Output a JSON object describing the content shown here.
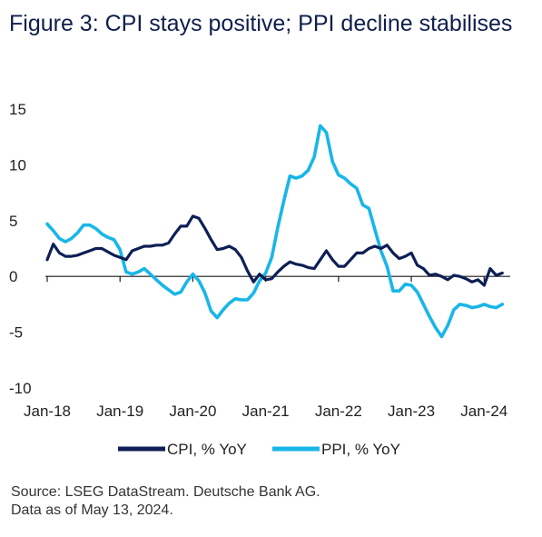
{
  "title": "Figure 3: CPI stays positive; PPI decline stabilises",
  "source_line1": "Source: LSEG DataStream. Deutsche Bank AG.",
  "source_line2": "Data as of May 13, 2024.",
  "colors": {
    "cpi": "#0d1f55",
    "ppi": "#19b6e8"
  },
  "chart_data": {
    "type": "line",
    "title": "Figure 3: CPI stays positive; PPI decline stabilises",
    "xlabel": "",
    "ylabel": "",
    "ylim": [
      -10,
      15
    ],
    "yticks": [
      15,
      10,
      5,
      0,
      -5,
      -10
    ],
    "xlim": [
      "2018-01",
      "2024-05"
    ],
    "xticks": [
      "Jan-18",
      "Jan-19",
      "Jan-20",
      "Jan-21",
      "Jan-22",
      "Jan-23",
      "Jan-24"
    ],
    "grid": false,
    "legend": "bottom",
    "series": [
      {
        "name": "CPI, % YoY",
        "color": "#0d1f55",
        "x": [
          "2018-01",
          "2018-02",
          "2018-03",
          "2018-04",
          "2018-05",
          "2018-06",
          "2018-07",
          "2018-08",
          "2018-09",
          "2018-10",
          "2018-11",
          "2018-12",
          "2019-01",
          "2019-02",
          "2019-03",
          "2019-04",
          "2019-05",
          "2019-06",
          "2019-07",
          "2019-08",
          "2019-09",
          "2019-10",
          "2019-11",
          "2019-12",
          "2020-01",
          "2020-02",
          "2020-03",
          "2020-04",
          "2020-05",
          "2020-06",
          "2020-07",
          "2020-08",
          "2020-09",
          "2020-10",
          "2020-11",
          "2020-12",
          "2021-01",
          "2021-02",
          "2021-03",
          "2021-04",
          "2021-05",
          "2021-06",
          "2021-07",
          "2021-08",
          "2021-09",
          "2021-10",
          "2021-11",
          "2021-12",
          "2022-01",
          "2022-02",
          "2022-03",
          "2022-04",
          "2022-05",
          "2022-06",
          "2022-07",
          "2022-08",
          "2022-09",
          "2022-10",
          "2022-11",
          "2022-12",
          "2023-01",
          "2023-02",
          "2023-03",
          "2023-04",
          "2023-05",
          "2023-06",
          "2023-07",
          "2023-08",
          "2023-09",
          "2023-10",
          "2023-11",
          "2023-12",
          "2024-01",
          "2024-02",
          "2024-03",
          "2024-04"
        ],
        "values": [
          1.5,
          2.9,
          2.1,
          1.8,
          1.8,
          1.9,
          2.1,
          2.3,
          2.5,
          2.5,
          2.2,
          1.9,
          1.7,
          1.5,
          2.3,
          2.5,
          2.7,
          2.7,
          2.8,
          2.8,
          3.0,
          3.8,
          4.5,
          4.5,
          5.4,
          5.2,
          4.3,
          3.3,
          2.4,
          2.5,
          2.7,
          2.4,
          1.7,
          0.5,
          -0.5,
          0.2,
          -0.3,
          -0.2,
          0.4,
          0.9,
          1.3,
          1.1,
          1.0,
          0.8,
          0.7,
          1.5,
          2.3,
          1.5,
          0.9,
          0.9,
          1.5,
          2.1,
          2.1,
          2.5,
          2.7,
          2.5,
          2.8,
          2.1,
          1.6,
          1.8,
          2.1,
          1.0,
          0.7,
          0.1,
          0.2,
          0.0,
          -0.3,
          0.1,
          0.0,
          -0.2,
          -0.5,
          -0.3,
          -0.8,
          0.7,
          0.1,
          0.3
        ]
      },
      {
        "name": "PPI, % YoY",
        "color": "#19b6e8",
        "x": [
          "2018-01",
          "2018-02",
          "2018-03",
          "2018-04",
          "2018-05",
          "2018-06",
          "2018-07",
          "2018-08",
          "2018-09",
          "2018-10",
          "2018-11",
          "2018-12",
          "2019-01",
          "2019-02",
          "2019-03",
          "2019-04",
          "2019-05",
          "2019-06",
          "2019-07",
          "2019-08",
          "2019-09",
          "2019-10",
          "2019-11",
          "2019-12",
          "2020-01",
          "2020-02",
          "2020-03",
          "2020-04",
          "2020-05",
          "2020-06",
          "2020-07",
          "2020-08",
          "2020-09",
          "2020-10",
          "2020-11",
          "2020-12",
          "2021-01",
          "2021-02",
          "2021-03",
          "2021-04",
          "2021-05",
          "2021-06",
          "2021-07",
          "2021-08",
          "2021-09",
          "2021-10",
          "2021-11",
          "2021-12",
          "2022-01",
          "2022-02",
          "2022-03",
          "2022-04",
          "2022-05",
          "2022-06",
          "2022-07",
          "2022-08",
          "2022-09",
          "2022-10",
          "2022-11",
          "2022-12",
          "2023-01",
          "2023-02",
          "2023-03",
          "2023-04",
          "2023-05",
          "2023-06",
          "2023-07",
          "2023-08",
          "2023-09",
          "2023-10",
          "2023-11",
          "2023-12",
          "2024-01",
          "2024-02",
          "2024-03",
          "2024-04"
        ],
        "values": [
          4.7,
          4.1,
          3.4,
          3.1,
          3.4,
          3.9,
          4.6,
          4.6,
          4.3,
          3.8,
          3.5,
          3.3,
          2.4,
          0.4,
          0.2,
          0.4,
          0.7,
          0.2,
          -0.3,
          -0.8,
          -1.2,
          -1.6,
          -1.4,
          -0.5,
          0.2,
          -0.4,
          -1.5,
          -3.1,
          -3.7,
          -3.0,
          -2.4,
          -2.0,
          -2.1,
          -2.1,
          -1.5,
          -0.4,
          0.3,
          1.7,
          4.4,
          6.8,
          9.0,
          8.8,
          9.0,
          9.5,
          10.7,
          13.5,
          12.9,
          10.3,
          9.1,
          8.8,
          8.3,
          7.9,
          6.4,
          6.1,
          4.2,
          2.3,
          0.9,
          -1.3,
          -1.3,
          -0.7,
          -0.8,
          -1.4,
          -2.5,
          -3.6,
          -4.6,
          -5.4,
          -4.4,
          -3.0,
          -2.5,
          -2.6,
          -2.8,
          -2.7,
          -2.5,
          -2.7,
          -2.8,
          -2.5
        ]
      }
    ]
  }
}
